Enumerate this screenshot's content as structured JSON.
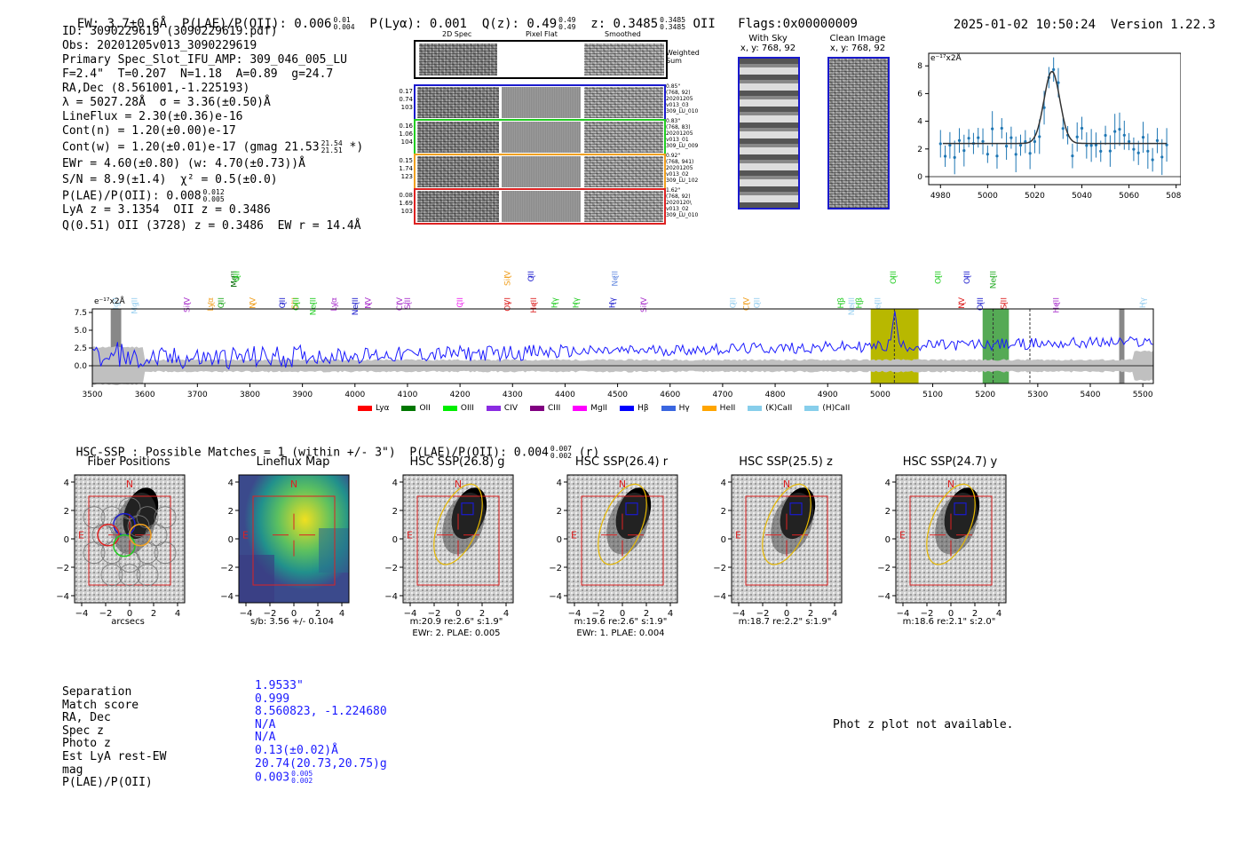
{
  "header": {
    "ew": "EW: 3.7±0.6Å",
    "plae_label": "P(LAE)/P(OII): 0.006",
    "plae_sup": "0.01",
    "plae_sub": "0.004",
    "plya": "P(Lyα): 0.001",
    "qz_label": "Q(z): 0.49",
    "qz_sup": "0.49",
    "qz_sub": "0.49",
    "z_label": "z: 0.3485",
    "z_sup": "0.3485",
    "z_sub": "0.3485",
    "z_line": "OII",
    "flags": "Flags:0x00000009",
    "datetime": "2025-01-02 10:50:24",
    "version": "Version 1.22.3"
  },
  "info": {
    "id": "ID: 3090229619 (3090229619.pdf)",
    "obs": "Obs: 20201205v013_3090229619",
    "primary": "Primary Spec_Slot_IFU_AMP: 309_046_005_LU",
    "fit": "F=2.4\"  T=0.207  N=1.18  A=0.89  g=24.7",
    "radec": "RA,Dec (8.561001,-1.225193)",
    "lambda": "λ = 5027.28Å  σ = 3.36(±0.50)Å",
    "lineflux": "LineFlux = 2.30(±0.36)e-16",
    "contn": "Cont(n) = 1.20(±0.00)e-17",
    "contw": "Cont(w) = 1.20(±0.01)e-17 (gmag 21.53",
    "contw_sup": "21.54",
    "contw_sub": "21.51",
    "contw_end": "*)",
    "ewr": "EWr = 4.60(±0.80) (w: 4.70(±0.73))Å",
    "sn": "S/N = 8.9(±1.4)  χ² = 0.5(±0.0)",
    "plae": "P(LAE)/P(OII): 0.008",
    "plae_sup": "0.012",
    "plae_sub": "0.005",
    "lya": "LyA z = 3.1354  OII z = 0.3486",
    "q": "Q(0.51) OII (3728) z = 0.3486  EW r = 14.4Å"
  },
  "cutouts": {
    "col_labels": [
      "2D Spec",
      "Pixel Flat",
      "Smoothed"
    ],
    "weighted": "Weighted Sum",
    "rows": [
      {
        "left": [
          "0.17",
          "0.74",
          "103"
        ],
        "right": [
          "0.85\"",
          "(768, 92)",
          "20201205",
          "v013_03",
          "309_LU_010"
        ],
        "color": "#1a1acc"
      },
      {
        "left": [
          "0.16",
          "1.06",
          "104"
        ],
        "right": [
          "0.83\"",
          "(768, 83)",
          "20201205",
          "v013_01",
          "309_LU_009"
        ],
        "color": "#22cc22"
      },
      {
        "left": [
          "0.15",
          "1.74",
          "123"
        ],
        "right": [
          "0.92\"",
          "(768, 941)",
          "20201205",
          "v013_02",
          "309_LU_102"
        ],
        "color": "#f0a020"
      },
      {
        "left": [
          "0.08",
          "1.69",
          "103"
        ],
        "right": [
          "1.62\"",
          "(768, 92)",
          "2020120\\",
          "v013_02",
          "309_LU_010"
        ],
        "color": "#dd2222"
      }
    ]
  },
  "sky": {
    "title": "With Sky",
    "coords": "x, y: 768, 92"
  },
  "clean": {
    "title": "Clean Image",
    "coords": "x, y: 768, 92"
  },
  "fitplot": {
    "ylabel": "e⁻¹⁷x2Å",
    "xticks": [
      "4980",
      "5000",
      "5020",
      "5040",
      "5060",
      "5080"
    ],
    "yticks": [
      "0",
      "2",
      "4",
      "6",
      "8"
    ]
  },
  "chart_data": {
    "type": "line",
    "title": "",
    "ylabel": "e⁻¹⁷x2Å",
    "xlim": [
      3500,
      5520
    ],
    "ylim": [
      -2.5,
      8
    ],
    "xticks": [
      "3500",
      "3600",
      "3700",
      "3800",
      "3900",
      "4000",
      "4100",
      "4200",
      "4300",
      "4400",
      "4500",
      "4600",
      "4700",
      "4800",
      "4900",
      "5000",
      "5100",
      "5200",
      "5300",
      "5400",
      "5500"
    ],
    "yticks": [
      "0.0",
      "2.5",
      "5.0",
      "7.5"
    ],
    "highlight_bands": [
      {
        "from": 4982,
        "to": 5073,
        "color": "#b8b800"
      },
      {
        "from": 5195,
        "to": 5245,
        "color": "#55aa55"
      }
    ],
    "lines": [
      {
        "name": "MgII",
        "x": 3545,
        "color": "#9ad0f0"
      },
      {
        "name": "MgII",
        "x": 3580,
        "color": "#9ad0f0"
      },
      {
        "name": "SiIV",
        "x": 3680,
        "color": "#aa33cc"
      },
      {
        "name": "Lyα",
        "x": 3725,
        "color": "#f0a020"
      },
      {
        "name": "OII",
        "x": 3745,
        "color": "#22aa22"
      },
      {
        "name": "MgII",
        "x": 3770,
        "color": "#006600"
      },
      {
        "name": "OII",
        "x": 3775,
        "color": "#22cc22"
      },
      {
        "name": "NV",
        "x": 3805,
        "color": "#f0a020"
      },
      {
        "name": "OII",
        "x": 3862,
        "color": "#1a1acc"
      },
      {
        "name": "SiII",
        "x": 3885,
        "color": "#f0a020"
      },
      {
        "name": "OIII",
        "x": 3888,
        "color": "#22cc22"
      },
      {
        "name": "NeIII",
        "x": 3920,
        "color": "#22cc22"
      },
      {
        "name": "Lyα",
        "x": 3960,
        "color": "#aa33cc"
      },
      {
        "name": "NeIII",
        "x": 4000,
        "color": "#1a1acc"
      },
      {
        "name": "NV",
        "x": 4025,
        "color": "#aa33cc"
      },
      {
        "name": "CIV",
        "x": 4085,
        "color": "#aa33cc"
      },
      {
        "name": "SiII",
        "x": 4100,
        "color": "#aa33cc"
      },
      {
        "name": "CII",
        "x": 4200,
        "color": "#ee22ee"
      },
      {
        "name": "SiIV",
        "x": 4290,
        "color": "#f0a020"
      },
      {
        "name": "OVI",
        "x": 4290,
        "color": "#dd2222"
      },
      {
        "name": "OII",
        "x": 4335,
        "color": "#1a1acc"
      },
      {
        "name": "HeII",
        "x": 4340,
        "color": "#dd2222"
      },
      {
        "name": "Hγ",
        "x": 4380,
        "color": "#22cc22"
      },
      {
        "name": "Hγ",
        "x": 4420,
        "color": "#22cc22"
      },
      {
        "name": "NeII",
        "x": 4495,
        "color": "#6a8ee0"
      },
      {
        "name": "Hγ",
        "x": 4490,
        "color": "#1a1acc"
      },
      {
        "name": "SiIV",
        "x": 4550,
        "color": "#aa33cc"
      },
      {
        "name": "OII",
        "x": 4720,
        "color": "#9ad0f0"
      },
      {
        "name": "CIV",
        "x": 4745,
        "color": "#f0a020"
      },
      {
        "name": "OII",
        "x": 4765,
        "color": "#9ad0f0"
      },
      {
        "name": "Hβ",
        "x": 4925,
        "color": "#22cc22"
      },
      {
        "name": "NeIII",
        "x": 4945,
        "color": "#9ad0f0"
      },
      {
        "name": "Hβ",
        "x": 4960,
        "color": "#22cc22"
      },
      {
        "name": "NeIII",
        "x": 4995,
        "color": "#9ad0f0"
      },
      {
        "name": "OIII",
        "x": 5025,
        "color": "#22cc22"
      },
      {
        "name": "OIII",
        "x": 5110,
        "color": "#22cc22"
      },
      {
        "name": "NV",
        "x": 5155,
        "color": "#dd2222"
      },
      {
        "name": "OIII",
        "x": 5190,
        "color": "#1a1acc"
      },
      {
        "name": "OIII",
        "x": 5165,
        "color": "#1a1acc"
      },
      {
        "name": "NeIII",
        "x": 5215,
        "color": "#22aa22"
      },
      {
        "name": "SiII",
        "x": 5235,
        "color": "#dd2222"
      },
      {
        "name": "HeII",
        "x": 5335,
        "color": "#aa33cc"
      },
      {
        "name": "Hγ",
        "x": 5500,
        "color": "#9ad0f0"
      }
    ],
    "legend": [
      {
        "label": "Lyα",
        "color": "#ff0000"
      },
      {
        "label": "OII",
        "color": "#007700"
      },
      {
        "label": "OIII",
        "color": "#00ee00"
      },
      {
        "label": "CIV",
        "color": "#8a2be2"
      },
      {
        "label": "CIII",
        "color": "#800080"
      },
      {
        "label": "MgII",
        "color": "#ff00ff"
      },
      {
        "label": "Hβ",
        "color": "#0000ff"
      },
      {
        "label": "Hγ",
        "color": "#3a66e0"
      },
      {
        "label": "HeII",
        "color": "#ffa500"
      },
      {
        "label": "(K)CaII",
        "color": "#87ceeb"
      },
      {
        "label": "(H)CaII",
        "color": "#87ceeb"
      }
    ]
  },
  "hsc": {
    "title": "HSC-SSP : Possible Matches = 1 (within +/- 3\")  P(LAE)/P(OII): 0.004",
    "sup": "0.007",
    "sub": "0.002",
    "suffix": "(r)",
    "panels": [
      {
        "title": "Fiber Positions",
        "sub1": "arcsecs",
        "sub2": ""
      },
      {
        "title": "Lineflux Map",
        "sub1": "s/b: 3.56 +/- 0.104",
        "sub2": ""
      },
      {
        "title": "HSC SSP(26.8) g",
        "sub1": "m:20.9  re:2.6\"  s:1.9\"",
        "sub2": "EWr: 2. PLAE: 0.005"
      },
      {
        "title": "HSC SSP(26.4) r",
        "sub1": "m:19.6  re:2.6\"  s:1.9\"",
        "sub2": "EWr: 1. PLAE: 0.004"
      },
      {
        "title": "HSC SSP(25.5) z",
        "sub1": "m:18.7  re:2.2\"  s:1.9\"",
        "sub2": ""
      },
      {
        "title": "HSC SSP(24.7) y",
        "sub1": "m:18.6  re:2.1\"  s:2.0\"",
        "sub2": ""
      }
    ],
    "axis_ticks": [
      "−4",
      "−2",
      "0",
      "2",
      "4"
    ],
    "n_label": "N",
    "e_label": "E"
  },
  "bottom": {
    "labels": [
      "Separation",
      "Match score",
      "RA, Dec",
      "Spec z",
      "Photo z",
      "Est LyA rest-EW",
      "mag",
      "P(LAE)/P(OII)"
    ],
    "values": [
      "1.9533\"",
      "0.999",
      "8.560823, -1.224680",
      "N/A",
      "N/A",
      "0.13(±0.02)Å",
      "20.74(20.73,20.75)g",
      "0.003"
    ],
    "plae_sup": "0.005",
    "plae_sub": "0.002",
    "photz_msg": "Phot z plot not available."
  }
}
